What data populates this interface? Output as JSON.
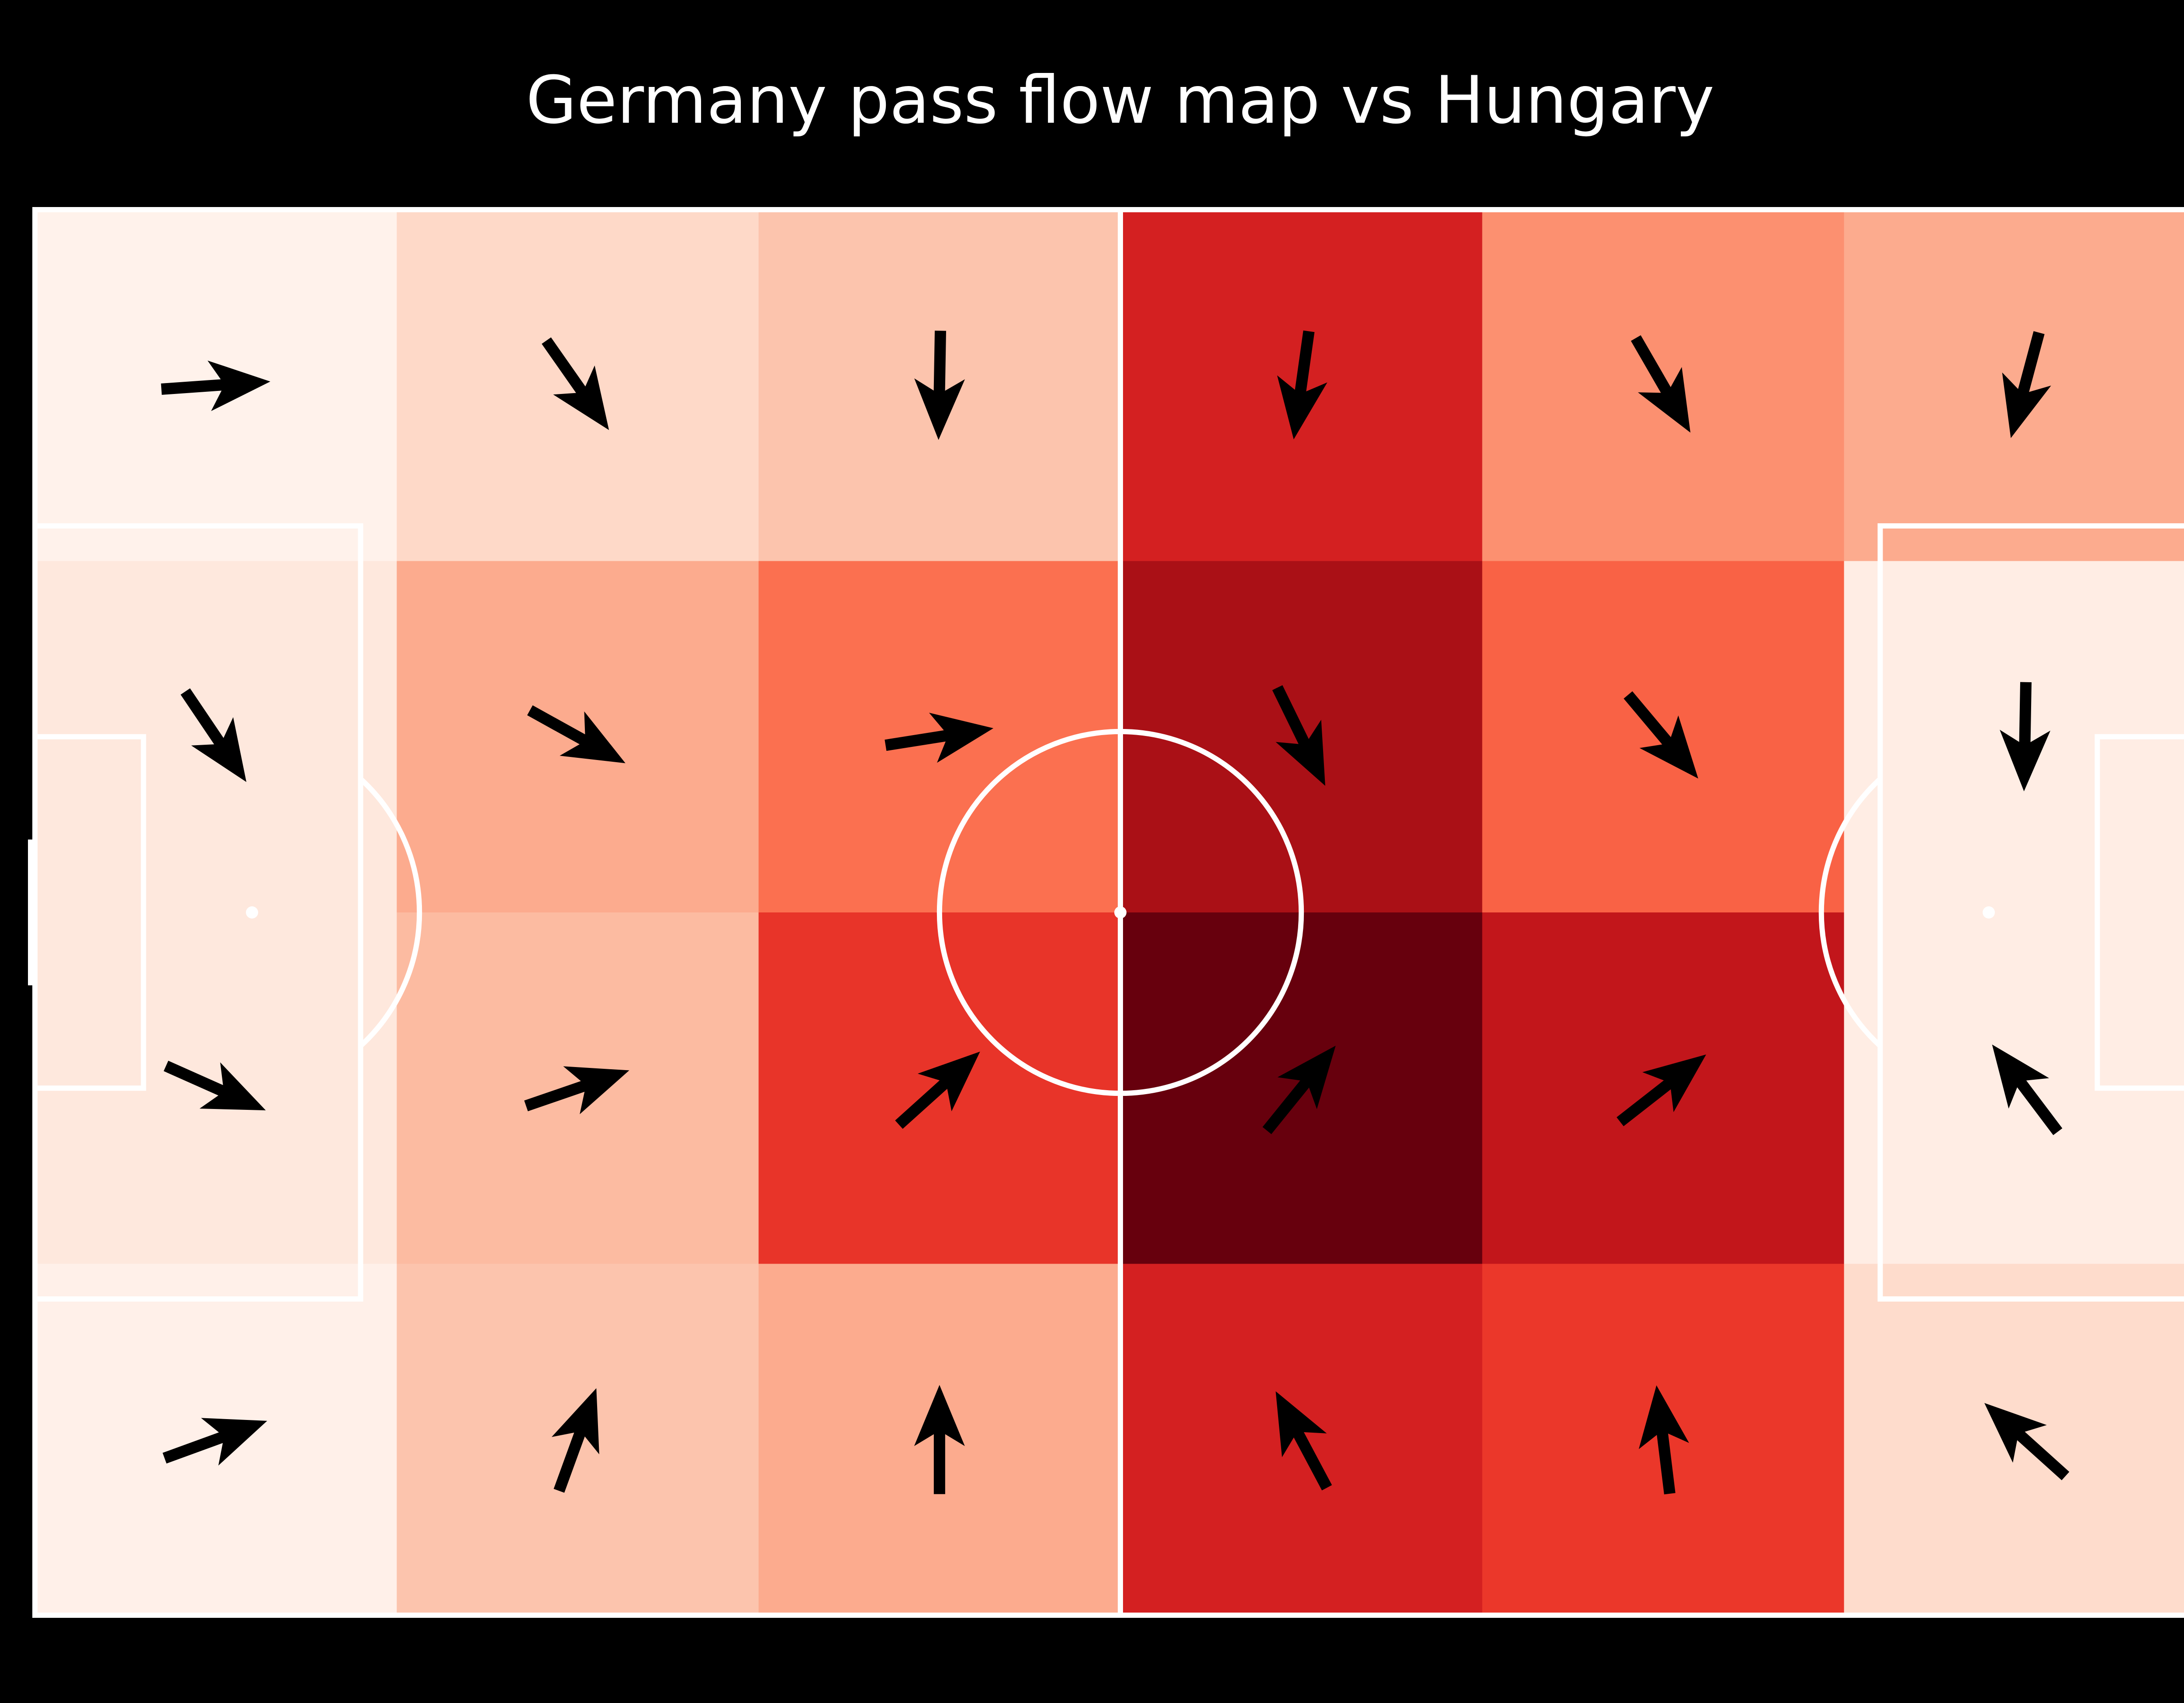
{
  "title": "Germany pass flow map vs Hungary",
  "colors": {
    "background": "#000000",
    "lines": "#ffffff",
    "arrows": "#000000",
    "colormap": [
      "#fff5f0",
      "#fee0d2",
      "#fcbba1",
      "#fc9272",
      "#fb6a4a",
      "#ef3b2c",
      "#cb181d",
      "#a50f15",
      "#67000d"
    ]
  },
  "chart_data": {
    "type": "heatmap",
    "pitch": {
      "length": 120,
      "width": 80
    },
    "bins": {
      "x": 6,
      "y": 4
    },
    "x_edges": [
      0,
      20,
      40,
      60,
      80,
      100,
      120
    ],
    "y_edges": [
      0,
      20,
      40,
      60,
      80
    ],
    "intensity": [
      [
        0.02,
        0.15,
        0.22,
        0.72,
        0.38,
        0.3
      ],
      [
        0.08,
        0.3,
        0.48,
        0.86,
        0.52,
        0.05
      ],
      [
        0.08,
        0.25,
        0.65,
        1.0,
        0.78,
        0.05
      ],
      [
        0.03,
        0.22,
        0.3,
        0.72,
        0.64,
        0.14
      ]
    ],
    "flow_angles_deg": [
      [
        -4,
        55,
        91,
        98,
        60,
        105
      ],
      [
        56,
        29,
        -9,
        64,
        50,
        91
      ],
      [
        24,
        -19,
        -42,
        -51,
        -38,
        -127
      ],
      [
        -20,
        -70,
        -90,
        -118,
        -97,
        -138
      ]
    ]
  }
}
